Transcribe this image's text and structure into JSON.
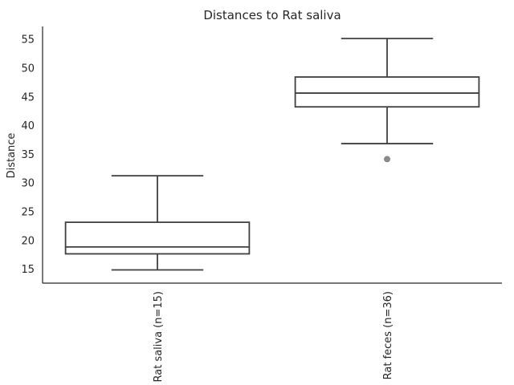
{
  "chart_data": {
    "type": "box",
    "title": "Distances to Rat saliva",
    "ylabel": "Distance",
    "xlabel": "",
    "ylim": [
      12.5,
      57.2
    ],
    "yticks": [
      15,
      20,
      25,
      30,
      35,
      40,
      45,
      50,
      55
    ],
    "categories": [
      "Rat saliva (n=15)",
      "Rat feces (n=36)"
    ],
    "boxes": [
      {
        "category": "Rat saliva (n=15)",
        "whisker_low": 14.8,
        "q1": 17.6,
        "median": 18.8,
        "q3": 23.1,
        "whisker_high": 31.2,
        "outliers": []
      },
      {
        "category": "Rat feces (n=36)",
        "whisker_low": 36.8,
        "q1": 43.2,
        "median": 45.6,
        "q3": 48.4,
        "whisker_high": 55.1,
        "outliers": [
          34.1
        ]
      }
    ],
    "grid": false,
    "colors": {
      "box_line": "#3f3f3f",
      "box_fill": "#ffffff",
      "outlier": "#8c8c8c",
      "axis": "#262626"
    }
  }
}
